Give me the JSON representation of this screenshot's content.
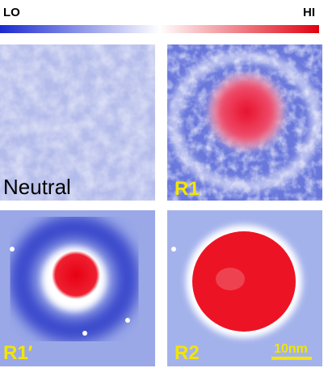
{
  "colorbar": {
    "low_label": "LO",
    "high_label": "HI"
  },
  "panels": [
    {
      "label": "Neutral"
    },
    {
      "label": "R1"
    },
    {
      "label": "R1′"
    },
    {
      "label": "R2"
    }
  ],
  "scale_bar": {
    "label": "10nm"
  }
}
